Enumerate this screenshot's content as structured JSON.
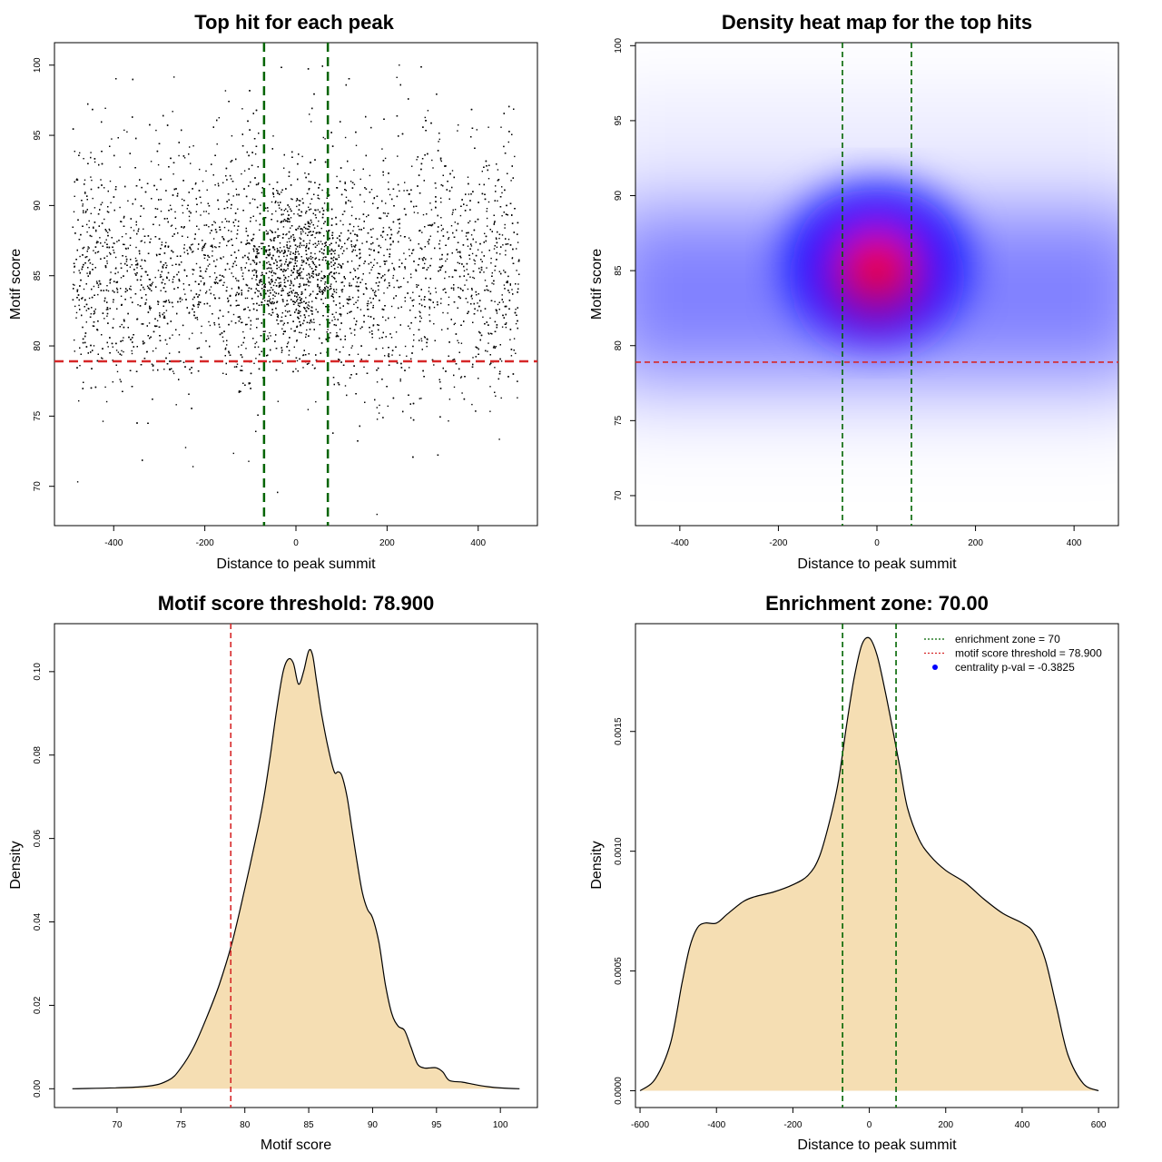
{
  "colors": {
    "points": "#000000",
    "threshold_line": "#d62728",
    "zone_line": "#006400",
    "density_fill": "#f5deb3",
    "density_stroke": "#000000",
    "heat_low": "#0000ff",
    "heat_high": "#ff0000",
    "legend_point": "#0000ff"
  },
  "chart_data": [
    {
      "type": "scatter",
      "title": "Top hit for each peak",
      "xlabel": "Distance to peak summit",
      "ylabel": "Motif score",
      "xlim": [
        -530,
        530
      ],
      "ylim": [
        67.2,
        101.6
      ],
      "xticks": [
        -400,
        -200,
        0,
        200,
        400
      ],
      "yticks": [
        70,
        75,
        80,
        85,
        90,
        95,
        100
      ],
      "xtick_labels": [
        "-400",
        "-200",
        "0",
        "200",
        "400"
      ],
      "ytick_labels": [
        "70",
        "75",
        "80",
        "85",
        "90",
        "95",
        "100"
      ],
      "hlines": [
        {
          "value": 78.9,
          "style": "threshold"
        }
      ],
      "vlines": [
        {
          "value": -70,
          "style": "zone"
        },
        {
          "value": 70,
          "style": "zone"
        }
      ],
      "point_cloud": {
        "n": 7000,
        "x_range": [
          -490,
          490
        ],
        "center_mode": 85.3,
        "spread_sd": 4.1,
        "score_range": [
          68,
          100
        ]
      }
    },
    {
      "type": "heatmap",
      "title": "Density heat map for the top hits",
      "xlabel": "Distance to peak summit",
      "ylabel": "Motif score",
      "xlim": [
        -490,
        490
      ],
      "ylim": [
        68,
        100.2
      ],
      "xticks": [
        -400,
        -200,
        0,
        200,
        400
      ],
      "yticks": [
        70,
        75,
        80,
        85,
        90,
        95,
        100
      ],
      "xtick_labels": [
        "-400",
        "-200",
        "0",
        "200",
        "400"
      ],
      "ytick_labels": [
        "70",
        "75",
        "80",
        "85",
        "90",
        "95",
        "100"
      ],
      "hlines": [
        {
          "value": 78.9,
          "style": "threshold"
        }
      ],
      "vlines": [
        {
          "value": -70,
          "style": "zone"
        },
        {
          "value": 70,
          "style": "zone"
        }
      ],
      "peak": {
        "x": 0,
        "y": 85.5
      }
    },
    {
      "type": "area",
      "title": "Motif score threshold: 78.900",
      "xlabel": "Motif score",
      "ylabel": "Density",
      "xlim": [
        65.1,
        102.9
      ],
      "ylim": [
        -0.0045,
        0.1115
      ],
      "xticks": [
        70,
        75,
        80,
        85,
        90,
        95,
        100
      ],
      "yticks": [
        0,
        0.02,
        0.04,
        0.06,
        0.08,
        0.1
      ],
      "xtick_labels": [
        "70",
        "75",
        "80",
        "85",
        "90",
        "95",
        "100"
      ],
      "ytick_labels": [
        "0.00",
        "0.02",
        "0.04",
        "0.06",
        "0.08",
        "0.10"
      ],
      "vlines": [
        {
          "value": 78.9,
          "style": "threshold"
        }
      ],
      "x": [
        66.5,
        72,
        74,
        75,
        76,
        77,
        78,
        79,
        80,
        81,
        81.5,
        82,
        82.5,
        83,
        83.4,
        83.8,
        84.2,
        84.6,
        85,
        85.3,
        85.6,
        86,
        86.5,
        87,
        87.3,
        87.6,
        88,
        88.4,
        88.8,
        89.2,
        89.6,
        90,
        90.5,
        91,
        91.5,
        92,
        92.5,
        93,
        93.5,
        94,
        94.5,
        95,
        95.5,
        96,
        97,
        98,
        99,
        100,
        101.5
      ],
      "y": [
        0,
        0.0005,
        0.002,
        0.005,
        0.01,
        0.017,
        0.025,
        0.035,
        0.048,
        0.062,
        0.07,
        0.08,
        0.091,
        0.1,
        0.103,
        0.102,
        0.097,
        0.1,
        0.105,
        0.104,
        0.098,
        0.09,
        0.082,
        0.076,
        0.076,
        0.075,
        0.07,
        0.062,
        0.054,
        0.047,
        0.043,
        0.041,
        0.035,
        0.025,
        0.018,
        0.015,
        0.014,
        0.01,
        0.006,
        0.005,
        0.005,
        0.005,
        0.004,
        0.002,
        0.0016,
        0.001,
        0.0005,
        0.0002,
        0
      ]
    },
    {
      "type": "area",
      "title": "Enrichment zone: 70.00",
      "xlabel": "Distance to peak summit",
      "ylabel": "Density",
      "xlim": [
        -612,
        652
      ],
      "ylim": [
        -7e-05,
        0.00195
      ],
      "xticks": [
        -600,
        -400,
        -200,
        0,
        200,
        400,
        600
      ],
      "yticks": [
        0,
        0.0005,
        0.001,
        0.0015
      ],
      "xtick_labels": [
        "-600",
        "-400",
        "-200",
        "0",
        "200",
        "400",
        "600"
      ],
      "ytick_labels": [
        "0.0000",
        "0.0005",
        "0.0010",
        "0.0015"
      ],
      "vlines": [
        {
          "value": -70,
          "style": "zone"
        },
        {
          "value": 70,
          "style": "zone"
        }
      ],
      "x": [
        -600,
        -560,
        -520,
        -490,
        -470,
        -450,
        -430,
        -400,
        -370,
        -330,
        -300,
        -250,
        -200,
        -160,
        -130,
        -100,
        -80,
        -60,
        -40,
        -20,
        0,
        20,
        40,
        60,
        80,
        100,
        130,
        160,
        200,
        250,
        300,
        350,
        400,
        430,
        460,
        490,
        520,
        560,
        600
      ],
      "y": [
        0,
        5e-05,
        0.0002,
        0.00045,
        0.0006,
        0.00068,
        0.0007,
        0.0007,
        0.00074,
        0.00079,
        0.00081,
        0.00083,
        0.00086,
        0.0009,
        0.00098,
        0.00115,
        0.0013,
        0.00152,
        0.00172,
        0.00186,
        0.00189,
        0.00182,
        0.00168,
        0.00152,
        0.00135,
        0.00118,
        0.00105,
        0.00098,
        0.00092,
        0.00087,
        0.0008,
        0.00074,
        0.0007,
        0.00066,
        0.00055,
        0.00035,
        0.00015,
        3e-05,
        0
      ],
      "legend": [
        {
          "label": "enrichment zone = 70",
          "kind": "dotted-line",
          "style": "zone"
        },
        {
          "label": "motif score threshold = 78.900",
          "kind": "dotted-line",
          "style": "threshold"
        },
        {
          "label": "centrality p-val = -0.3825",
          "kind": "point",
          "style": "point"
        }
      ],
      "legend_position": "top-right"
    }
  ]
}
